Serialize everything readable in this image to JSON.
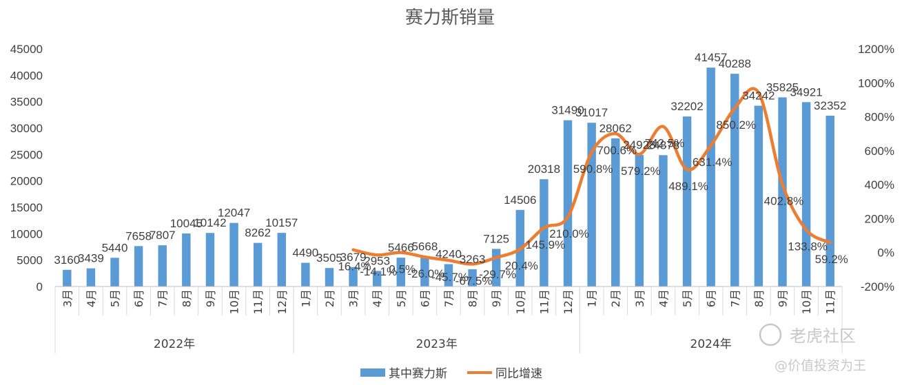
{
  "chart_data": {
    "type": "bar",
    "title": "赛力斯销量",
    "categories": [
      "3月",
      "4月",
      "5月",
      "6月",
      "7月",
      "8月",
      "9月",
      "10月",
      "11月",
      "12月",
      "1月",
      "2月",
      "3月",
      "4月",
      "5月",
      "6月",
      "7月",
      "8月",
      "9月",
      "10月",
      "11月",
      "12月",
      "1月",
      "2月",
      "3月",
      "4月",
      "5月",
      "6月",
      "7月",
      "8月",
      "9月",
      "10月",
      "11月"
    ],
    "groups": [
      {
        "label": "2022年",
        "start": 0,
        "count": 10
      },
      {
        "label": "2023年",
        "start": 10,
        "count": 12
      },
      {
        "label": "2024年",
        "start": 22,
        "count": 11
      }
    ],
    "series": [
      {
        "name": "其中赛力斯",
        "type": "bar",
        "axis": "left",
        "color": "#5B9BD5",
        "values": [
          3160,
          3439,
          5440,
          7658,
          7807,
          10045,
          10142,
          12047,
          8262,
          10157,
          4490,
          3505,
          3679,
          2953,
          5466,
          5668,
          4240,
          3263,
          7125,
          14506,
          20318,
          31490,
          31017,
          28062,
          24928,
          24878,
          32202,
          41457,
          40288,
          34242,
          35825,
          34921,
          32352
        ]
      },
      {
        "name": "同比增速",
        "type": "line",
        "axis": "right",
        "color": "#ED7D31",
        "values": [
          null,
          null,
          null,
          null,
          null,
          null,
          null,
          null,
          null,
          null,
          null,
          null,
          16.4,
          -14.1,
          0.5,
          -26.0,
          -45.7,
          -67.5,
          -29.7,
          20.4,
          145.9,
          210.0,
          590.8,
          700.6,
          579.2,
          742.5,
          489.1,
          631.4,
          850.2,
          942.0,
          402.8,
          133.8,
          59.2
        ],
        "labels": [
          null,
          null,
          null,
          null,
          null,
          null,
          null,
          null,
          null,
          null,
          null,
          null,
          "16.4%",
          "-14.1%",
          "0.5%",
          "-26.0%",
          "-45.7%",
          "-67.5%",
          "-29.7%",
          "20.4%",
          "145.9%",
          "210.0%",
          "590.8%",
          "700.6%",
          "579.2%",
          "742.5%",
          "489.1%",
          "631.4%",
          "850.2%",
          "",
          "402.8%",
          "133.8%",
          "59.2%"
        ]
      }
    ],
    "yleft": {
      "min": 0,
      "max": 45000,
      "step": 5000
    },
    "yright": {
      "min": -200,
      "max": 1200,
      "step": 200,
      "suffix": "%"
    },
    "legend_position": "bottom"
  },
  "watermark": {
    "brand": "老虎社区",
    "handle": "@价值投资为王"
  }
}
